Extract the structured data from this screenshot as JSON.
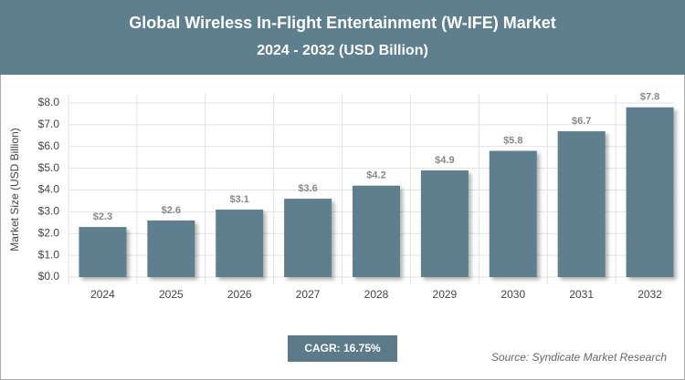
{
  "chart_data": {
    "type": "bar",
    "title": "Global Wireless In-Flight Entertainment (W-IFE) Market",
    "subtitle": "2024 - 2032 (USD Billion)",
    "y_label": "Market Size (USD Billion)",
    "categories": [
      "2024",
      "2025",
      "2026",
      "2027",
      "2028",
      "2029",
      "2030",
      "2031",
      "2032"
    ],
    "values": [
      2.3,
      2.6,
      3.1,
      3.6,
      4.2,
      4.9,
      5.8,
      6.7,
      7.8
    ],
    "value_labels": [
      "$2.3",
      "$2.6",
      "$3.1",
      "$3.6",
      "$4.2",
      "$4.9",
      "$5.8",
      "$6.7",
      "$7.8"
    ],
    "color": "#5f7f8f",
    "ylim": [
      0,
      8
    ],
    "yticks": [
      {
        "value": 0,
        "label": "$0.0"
      },
      {
        "value": 1,
        "label": "$1.0"
      },
      {
        "value": 2,
        "label": "$2.0"
      },
      {
        "value": 3,
        "label": "$3.0"
      },
      {
        "value": 4,
        "label": "$4.0"
      },
      {
        "value": 5,
        "label": "$5.0"
      },
      {
        "value": 6,
        "label": "$6.0"
      },
      {
        "value": 7,
        "label": "$7.0"
      },
      {
        "value": 8,
        "label": "$8.0"
      }
    ],
    "grid": true,
    "annotation": "CAGR: 16.75%",
    "source": "Source: Syndicate Market Research"
  }
}
